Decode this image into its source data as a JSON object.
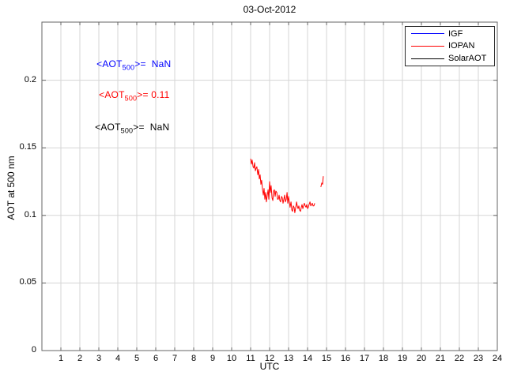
{
  "title": "03-Oct-2012",
  "axes": {
    "xlabel": "UTC",
    "ylabel": "AOT at 500 nm"
  },
  "annotations": [
    {
      "prefix": "<AOT",
      "sub": "500",
      "rest": ">=  NaN",
      "color": "#0000ff"
    },
    {
      "prefix": "<AOT",
      "sub": "500",
      "rest": ">= 0.11",
      "color": "#ff0000"
    },
    {
      "prefix": "<AOT",
      "sub": "500",
      "rest": ">=  NaN",
      "color": "#000000"
    }
  ],
  "legend": {
    "entries": [
      {
        "label": "IGF",
        "color": "#0000ff"
      },
      {
        "label": "IOPAN",
        "color": "#ff0000"
      },
      {
        "label": "SolarAOT",
        "color": "#000000"
      }
    ]
  },
  "colors": {
    "background": "#ffffff",
    "grid": "#d5d5d5",
    "axis_box": "#666666",
    "tick": "#666666",
    "title_text": "#000000"
  },
  "chart_data": {
    "type": "line",
    "title": "03-Oct-2012",
    "xlabel": "UTC",
    "ylabel": "AOT at 500 nm",
    "xlim": [
      0,
      24
    ],
    "ylim": [
      0,
      0.243
    ],
    "xticks": [
      1,
      2,
      3,
      4,
      5,
      6,
      7,
      8,
      9,
      10,
      11,
      12,
      13,
      14,
      15,
      16,
      17,
      18,
      19,
      20,
      21,
      22,
      23,
      24
    ],
    "yticks": [
      0,
      0.05,
      0.1,
      0.15,
      0.2
    ],
    "ytick_labels": [
      "0",
      "0.05",
      "0.1",
      "0.15",
      "0.2"
    ],
    "grid": true,
    "legend_position": "top-right",
    "series": [
      {
        "name": "IGF",
        "color": "#0000ff",
        "segments": []
      },
      {
        "name": "IOPAN",
        "color": "#ff0000",
        "segments": [
          [
            [
              11.0,
              0.142
            ],
            [
              11.04,
              0.138
            ],
            [
              11.08,
              0.141
            ],
            [
              11.13,
              0.136
            ],
            [
              11.17,
              0.135
            ],
            [
              11.21,
              0.139
            ],
            [
              11.25,
              0.133
            ],
            [
              11.29,
              0.135
            ],
            [
              11.33,
              0.136
            ],
            [
              11.38,
              0.13
            ],
            [
              11.42,
              0.134
            ],
            [
              11.46,
              0.127
            ],
            [
              11.5,
              0.13
            ],
            [
              11.54,
              0.123
            ],
            [
              11.58,
              0.126
            ],
            [
              11.63,
              0.119
            ],
            [
              11.67,
              0.115
            ],
            [
              11.71,
              0.12
            ],
            [
              11.75,
              0.112
            ],
            [
              11.79,
              0.117
            ],
            [
              11.83,
              0.11
            ],
            [
              11.88,
              0.115
            ],
            [
              11.92,
              0.119
            ],
            [
              11.96,
              0.112
            ],
            [
              12.0,
              0.125
            ],
            [
              12.04,
              0.117
            ],
            [
              12.08,
              0.122
            ],
            [
              12.13,
              0.113
            ],
            [
              12.17,
              0.111
            ],
            [
              12.21,
              0.118
            ],
            [
              12.25,
              0.119
            ],
            [
              12.29,
              0.114
            ],
            [
              12.33,
              0.118
            ],
            [
              12.38,
              0.117
            ],
            [
              12.42,
              0.112
            ],
            [
              12.46,
              0.112
            ],
            [
              12.5,
              0.115
            ],
            [
              12.54,
              0.111
            ],
            [
              12.58,
              0.11
            ],
            [
              12.63,
              0.114
            ],
            [
              12.67,
              0.113
            ],
            [
              12.71,
              0.109
            ],
            [
              12.75,
              0.112
            ],
            [
              12.79,
              0.115
            ],
            [
              12.83,
              0.11
            ],
            [
              12.88,
              0.112
            ],
            [
              12.92,
              0.117
            ],
            [
              12.96,
              0.109
            ],
            [
              13.0,
              0.114
            ],
            [
              13.04,
              0.11
            ],
            [
              13.08,
              0.106
            ],
            [
              13.13,
              0.11
            ],
            [
              13.17,
              0.104
            ],
            [
              13.21,
              0.103
            ],
            [
              13.25,
              0.107
            ],
            [
              13.29,
              0.106
            ],
            [
              13.33,
              0.102
            ],
            [
              13.38,
              0.106
            ],
            [
              13.42,
              0.11
            ],
            [
              13.46,
              0.107
            ],
            [
              13.5,
              0.105
            ],
            [
              13.54,
              0.107
            ],
            [
              13.58,
              0.104
            ],
            [
              13.63,
              0.103
            ],
            [
              13.67,
              0.106
            ],
            [
              13.71,
              0.108
            ],
            [
              13.75,
              0.105
            ],
            [
              13.79,
              0.107
            ],
            [
              13.83,
              0.109
            ],
            [
              13.88,
              0.107
            ],
            [
              13.92,
              0.106
            ],
            [
              13.96,
              0.108
            ],
            [
              14.0,
              0.105
            ],
            [
              14.04,
              0.106
            ],
            [
              14.08,
              0.108
            ],
            [
              14.13,
              0.11
            ],
            [
              14.17,
              0.107
            ],
            [
              14.21,
              0.108
            ],
            [
              14.25,
              0.109
            ],
            [
              14.29,
              0.107
            ],
            [
              14.33,
              0.107
            ],
            [
              14.38,
              0.109
            ]
          ],
          [
            [
              14.7,
              0.121
            ],
            [
              14.75,
              0.124
            ],
            [
              14.79,
              0.123
            ],
            [
              14.83,
              0.129
            ]
          ]
        ]
      },
      {
        "name": "SolarAOT",
        "color": "#000000",
        "segments": []
      }
    ]
  }
}
